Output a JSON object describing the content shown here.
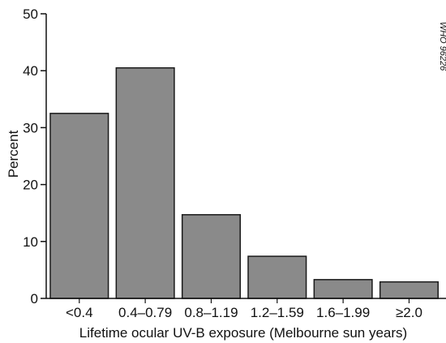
{
  "chart_data": {
    "type": "bar",
    "categories": [
      "<0.4",
      "0.4–0.79",
      "0.8–1.19",
      "1.2–1.59",
      "1.6–1.99",
      "≥2.0"
    ],
    "values": [
      32.5,
      40.5,
      14.7,
      7.4,
      3.3,
      2.9
    ],
    "title": "",
    "xlabel": "Lifetime ocular UV-B exposure (Melbourne sun years)",
    "ylabel": "Percent",
    "ylim": [
      0,
      50
    ],
    "yticks": [
      0,
      10,
      20,
      30,
      40,
      50
    ],
    "grid": false,
    "legend": "none",
    "bar_fill": "#8a8a8a",
    "bar_stroke": "#1a1a1a",
    "annotations": [
      "WHO 96226"
    ]
  }
}
